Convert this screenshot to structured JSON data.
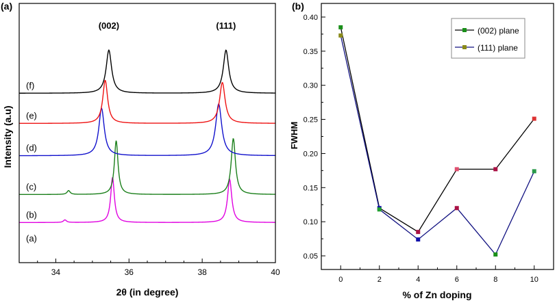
{
  "chart_data": [
    {
      "type": "line",
      "panel_label": "(a)",
      "xlabel": "2θ (in degree)",
      "ylabel": "Intensity (a.u)",
      "xlim": [
        33,
        40
      ],
      "x_ticks": [
        34,
        36,
        38,
        40
      ],
      "peak_labels": [
        {
          "text": "(002)",
          "x": 35.45
        },
        {
          "text": "(111)",
          "x": 38.65
        }
      ],
      "series": [
        {
          "name": "(a)",
          "color": "#ffffff",
          "baseline": 0.0,
          "peaks": []
        },
        {
          "name": "(b)",
          "color": "#e000e0",
          "baseline": 0.11,
          "peaks": [
            [
              34.25,
              0.012,
              0.05
            ],
            [
              35.55,
              0.21,
              0.06
            ],
            [
              38.75,
              0.2,
              0.07
            ]
          ]
        },
        {
          "name": "(c)",
          "color": "#1a7f1a",
          "baseline": 0.24,
          "peaks": [
            [
              34.35,
              0.018,
              0.05
            ],
            [
              35.65,
              0.25,
              0.06
            ],
            [
              38.85,
              0.26,
              0.07
            ]
          ]
        },
        {
          "name": "(d)",
          "color": "#1010cc",
          "baseline": 0.42,
          "peaks": [
            [
              35.25,
              0.22,
              0.09
            ],
            [
              38.45,
              0.24,
              0.1
            ]
          ]
        },
        {
          "name": "(e)",
          "color": "#ee1111",
          "baseline": 0.57,
          "peaks": [
            [
              35.35,
              0.2,
              0.08
            ],
            [
              38.55,
              0.19,
              0.09
            ]
          ]
        },
        {
          "name": "(f)",
          "color": "#000000",
          "baseline": 0.71,
          "peaks": [
            [
              35.45,
              0.2,
              0.09
            ],
            [
              38.65,
              0.2,
              0.09
            ]
          ]
        }
      ]
    },
    {
      "type": "line",
      "panel_label": "(b)",
      "xlabel": "% of Zn doping",
      "ylabel": "FWHM",
      "xlim": [
        -1,
        11
      ],
      "ylim": [
        0.03,
        0.42
      ],
      "x_ticks": [
        0,
        2,
        4,
        6,
        8,
        10
      ],
      "y_ticks": [
        "0.05",
        "0.10",
        "0.15",
        "0.20",
        "0.25",
        "0.30",
        "0.35",
        "0.40"
      ],
      "legend_position": "top-right",
      "x": [
        0,
        2,
        4,
        6,
        8,
        10
      ],
      "series": [
        {
          "name": "(002) plane",
          "line_color": "#000000",
          "legend_marker": "#1a8f1a",
          "values": [
            0.385,
            0.12,
            0.085,
            0.177,
            0.177,
            0.251
          ],
          "marker_colors": [
            "#1a8f1a",
            "#1010aa",
            "#aa1144",
            "#e05070",
            "#aa1144",
            "#dd3333"
          ]
        },
        {
          "name": "(111) plane",
          "line_color": "#101080",
          "legend_marker": "#8a8a1a",
          "values": [
            0.373,
            0.118,
            0.074,
            0.12,
            0.052,
            0.174
          ],
          "marker_colors": [
            "#8a8a1a",
            "#20a030",
            "#1010aa",
            "#aa1144",
            "#1a8f1a",
            "#2a9a4a"
          ]
        }
      ]
    }
  ]
}
